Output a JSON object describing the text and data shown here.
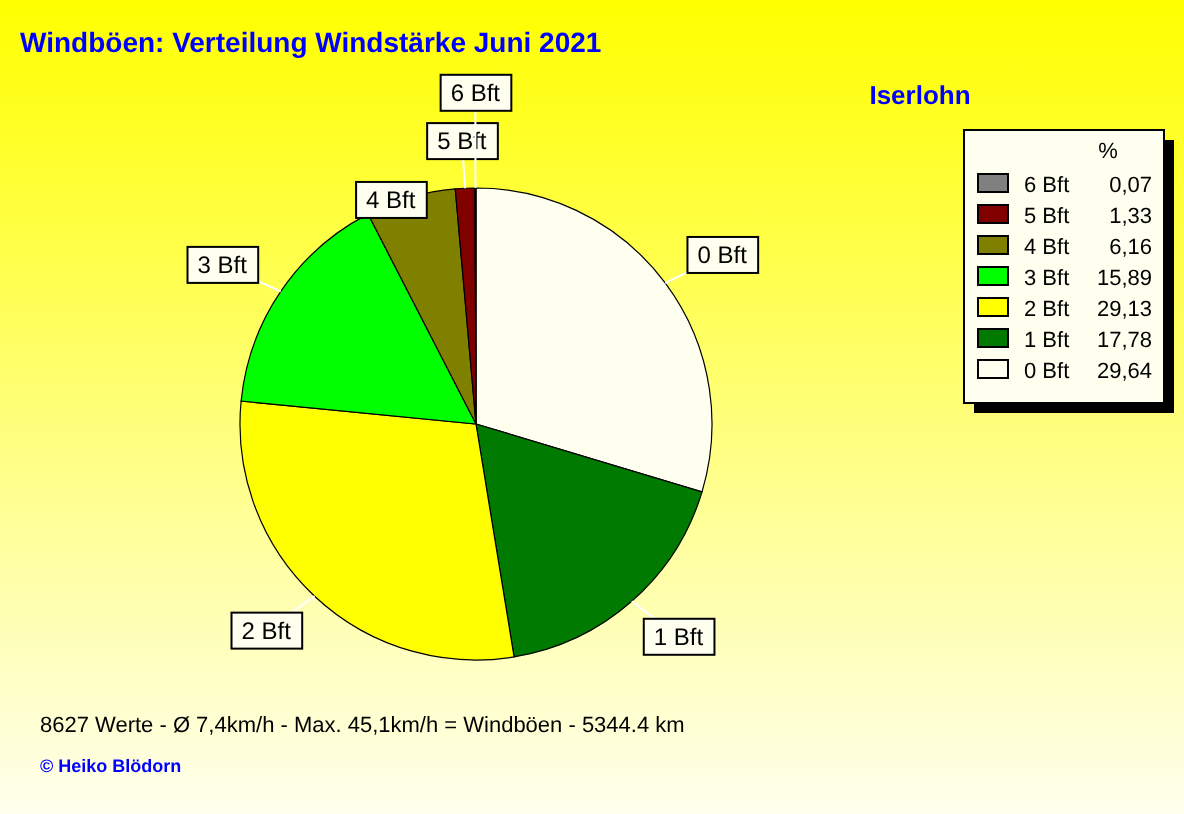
{
  "chart_data": {
    "type": "pie",
    "title": "Windböen: Verteilung Windstärke  Juni 2021",
    "subtitle": "Iserlohn",
    "categories": [
      "0 Bft",
      "1 Bft",
      "2 Bft",
      "3 Bft",
      "4 Bft",
      "5 Bft",
      "6 Bft"
    ],
    "values": [
      29.64,
      17.78,
      29.13,
      15.89,
      6.16,
      1.33,
      0.07
    ],
    "value_labels": [
      "29,64",
      "17,78",
      "29,13",
      "15,89",
      "6,16",
      "1,33",
      "0,07"
    ],
    "colors": [
      "#fffff0",
      "#007a00",
      "#ffff00",
      "#00ff00",
      "#808000",
      "#800000",
      "#808080"
    ],
    "legend": "top right",
    "legend_title": "%",
    "annotations": [
      "8627 Werte   -   Ø 7,4km/h  -  Max. 45,1km/h = Windböen   -   5344.4 km",
      "© Heiko Blödorn"
    ]
  }
}
